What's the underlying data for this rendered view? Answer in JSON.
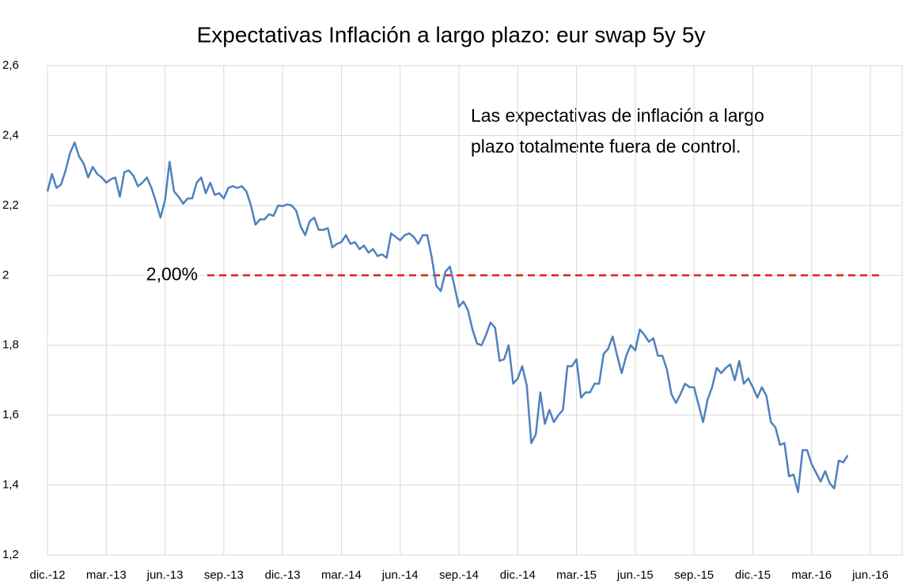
{
  "chart_data": {
    "type": "line",
    "title": "Expectativas Inflación a largo plazo: eur swap 5y 5y",
    "annotation": [
      "Las expectativas de inflación a largo",
      "plazo totalmente fuera de control."
    ],
    "reference_line": {
      "value": 2,
      "label": "2,00%",
      "color": "#e3211c"
    },
    "categories": [
      "dic.-12",
      null,
      null,
      null,
      null,
      null,
      null,
      null,
      null,
      null,
      null,
      null,
      null,
      "mar.-13",
      null,
      null,
      null,
      null,
      null,
      null,
      null,
      null,
      null,
      null,
      null,
      null,
      "jun.-13",
      null,
      null,
      null,
      null,
      null,
      null,
      null,
      null,
      null,
      null,
      null,
      null,
      "sep.-13",
      null,
      null,
      null,
      null,
      null,
      null,
      null,
      null,
      null,
      null,
      null,
      null,
      "dic.-13",
      null,
      null,
      null,
      null,
      null,
      null,
      null,
      null,
      null,
      null,
      null,
      null,
      "mar.-14",
      null,
      null,
      null,
      null,
      null,
      null,
      null,
      null,
      null,
      null,
      null,
      null,
      "jun.-14",
      null,
      null,
      null,
      null,
      null,
      null,
      null,
      null,
      null,
      null,
      null,
      null,
      "sep.-14",
      null,
      null,
      null,
      null,
      null,
      null,
      null,
      null,
      null,
      null,
      null,
      null,
      "dic.-14",
      null,
      null,
      null,
      null,
      null,
      null,
      null,
      null,
      null,
      null,
      null,
      null,
      "mar.-15",
      null,
      null,
      null,
      null,
      null,
      null,
      null,
      null,
      null,
      null,
      null,
      null,
      "jun.-15",
      null,
      null,
      null,
      null,
      null,
      null,
      null,
      null,
      null,
      null,
      null,
      null,
      "sep.-15",
      null,
      null,
      null,
      null,
      null,
      null,
      null,
      null,
      null,
      null,
      null,
      null,
      "dic.-15",
      null,
      null,
      null,
      null,
      null,
      null,
      null,
      null,
      null,
      null,
      null,
      null,
      "mar.-16",
      null,
      null,
      null,
      null,
      null,
      null,
      null,
      null,
      null,
      null,
      null,
      null,
      "jun.-16",
      null,
      null,
      null,
      null,
      null,
      null,
      null
    ],
    "series": [
      {
        "color": "#4f81bd",
        "values": [
          2.24,
          2.29,
          2.25,
          2.26,
          2.3,
          2.35,
          2.38,
          2.34,
          2.32,
          2.28,
          2.31,
          2.29,
          2.28,
          2.265,
          2.275,
          2.28,
          2.225,
          2.295,
          2.3,
          2.285,
          2.255,
          2.265,
          2.28,
          2.25,
          2.21,
          2.165,
          2.215,
          2.325,
          2.24,
          2.225,
          2.205,
          2.22,
          2.22,
          2.265,
          2.28,
          2.235,
          2.265,
          2.23,
          2.235,
          2.22,
          2.25,
          2.255,
          2.25,
          2.255,
          2.24,
          2.2,
          2.145,
          2.16,
          2.16,
          2.175,
          2.17,
          2.2,
          2.198,
          2.203,
          2.2,
          2.185,
          2.14,
          2.115,
          2.155,
          2.165,
          2.13,
          2.13,
          2.135,
          2.08,
          2.09,
          2.095,
          2.115,
          2.09,
          2.095,
          2.075,
          2.085,
          2.065,
          2.075,
          2.055,
          2.06,
          2.05,
          2.12,
          2.11,
          2.1,
          2.115,
          2.12,
          2.11,
          2.09,
          2.115,
          2.115,
          2.05,
          1.97,
          1.955,
          2.01,
          2.025,
          1.97,
          1.91,
          1.925,
          1.9,
          1.845,
          1.805,
          1.8,
          1.83,
          1.865,
          1.85,
          1.755,
          1.76,
          1.8,
          1.69,
          1.705,
          1.74,
          1.685,
          1.52,
          1.545,
          1.665,
          1.575,
          1.615,
          1.58,
          1.6,
          1.615,
          1.74,
          1.74,
          1.76,
          1.65,
          1.665,
          1.665,
          1.69,
          1.69,
          1.775,
          1.79,
          1.825,
          1.77,
          1.72,
          1.77,
          1.8,
          1.785,
          1.845,
          1.83,
          1.81,
          1.82,
          1.77,
          1.77,
          1.73,
          1.66,
          1.635,
          1.66,
          1.69,
          1.68,
          1.68,
          1.63,
          1.58,
          1.645,
          1.68,
          1.735,
          1.72,
          1.735,
          1.745,
          1.7,
          1.755,
          1.69,
          1.705,
          1.68,
          1.65,
          1.68,
          1.655,
          1.58,
          1.565,
          1.515,
          1.52,
          1.425,
          1.43,
          1.38,
          1.5,
          1.5,
          1.46,
          1.435,
          1.41,
          1.44,
          1.405,
          1.39,
          1.47,
          1.465,
          1.485,
          null,
          null,
          null,
          null,
          null,
          null,
          null,
          null,
          null,
          null,
          null,
          null
        ]
      }
    ],
    "ylim": [
      1.2,
      2.6
    ],
    "yticks": [
      {
        "value": 1.2,
        "label": "1,2"
      },
      {
        "value": 1.4,
        "label": "1,4"
      },
      {
        "value": 1.6,
        "label": "1,6"
      },
      {
        "value": 1.8,
        "label": "1,8"
      },
      2,
      {
        "value": 2.2,
        "label": "2,2"
      },
      {
        "value": 2.4,
        "label": "2,4"
      },
      {
        "value": 2.6,
        "label": "2,6"
      }
    ],
    "grid": true
  }
}
